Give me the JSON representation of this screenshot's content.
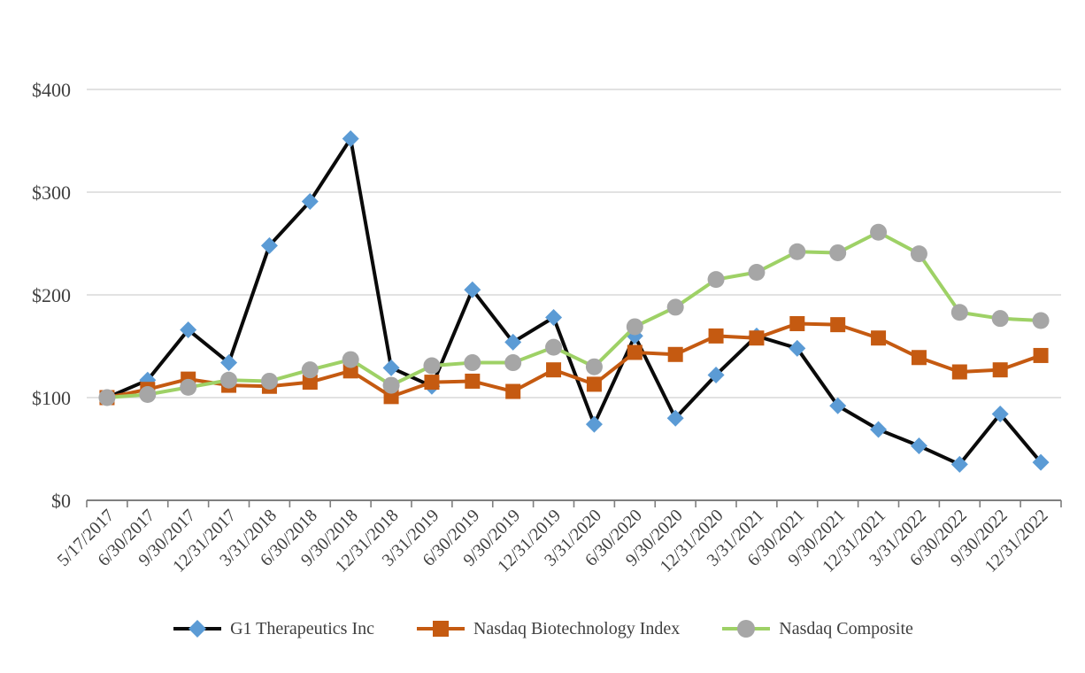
{
  "chart_data": {
    "type": "line",
    "title": "",
    "xlabel": "",
    "ylabel": "",
    "x_labels": [
      "5/17/2017",
      "6/30/2017",
      "9/30/2017",
      "12/31/2017",
      "3/31/2018",
      "6/30/2018",
      "9/30/2018",
      "12/31/2018",
      "3/31/2019",
      "6/30/2019",
      "9/30/2019",
      "12/31/2019",
      "3/31/2020",
      "6/30/2020",
      "9/30/2020",
      "12/31/2020",
      "3/31/2021",
      "6/30/2021",
      "9/30/2021",
      "12/31/2021",
      "3/31/2022",
      "6/30/2022",
      "9/30/2022",
      "12/31/2022"
    ],
    "series": [
      {
        "name": "G1 Therapeutics Inc",
        "marker": "diamond",
        "line_color": "#0a0a0a",
        "marker_color": "#5B9BD5",
        "values": [
          100,
          117,
          166,
          134,
          248,
          291,
          352,
          129,
          111,
          205,
          154,
          178,
          74,
          160,
          80,
          122,
          160,
          148,
          92,
          69,
          53,
          35,
          84,
          37
        ]
      },
      {
        "name": "Nasdaq Biotechnology Index",
        "marker": "square",
        "line_color": "#C55A11",
        "marker_color": "#C55A11",
        "values": [
          100,
          108,
          118,
          112,
          111,
          115,
          126,
          101,
          115,
          116,
          106,
          127,
          113,
          144,
          142,
          160,
          158,
          172,
          171,
          158,
          139,
          125,
          127,
          141
        ]
      },
      {
        "name": "Nasdaq Composite",
        "marker": "circle",
        "line_color": "#9ED166",
        "marker_color": "#A6A6A6",
        "values": [
          100,
          103,
          110,
          117,
          116,
          127,
          137,
          112,
          131,
          134,
          134,
          149,
          130,
          169,
          188,
          215,
          222,
          242,
          241,
          261,
          240,
          183,
          177,
          175
        ]
      }
    ],
    "y_ticks": [
      {
        "label": "$0",
        "value": 0
      },
      {
        "label": "$100",
        "value": 100
      },
      {
        "label": "$200",
        "value": 200
      },
      {
        "label": "$300",
        "value": 300
      },
      {
        "label": "$400",
        "value": 400
      }
    ],
    "ylim": [
      0,
      400
    ],
    "grid": "horizontal",
    "legend_position": "bottom",
    "colors": {
      "grid_line": "#D9D9D9",
      "axis_line": "#7F7F7F",
      "tick_text": "#404040",
      "background": "#ffffff"
    }
  }
}
